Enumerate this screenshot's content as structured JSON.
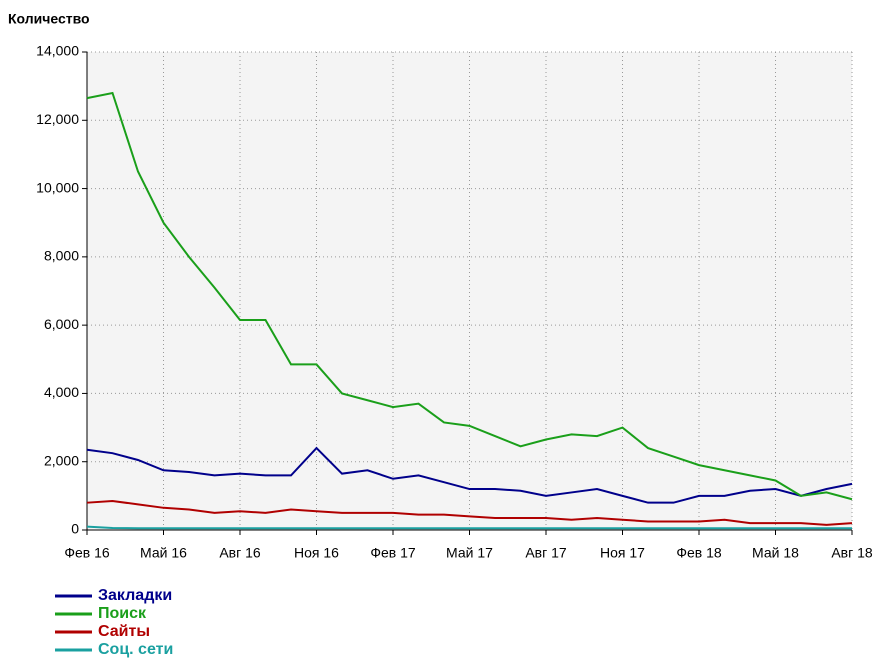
{
  "chart_data": {
    "type": "line",
    "ylabel": "Количество",
    "categories": [
      "Фев 16",
      null,
      null,
      "Май 16",
      null,
      null,
      "Авг 16",
      null,
      null,
      "Ноя 16",
      null,
      null,
      "Фев 17",
      null,
      null,
      "Май 17",
      null,
      null,
      "Авг 17",
      null,
      null,
      "Ноя 17",
      null,
      null,
      "Фев 18",
      null,
      null,
      "Май 18",
      null,
      null,
      "Авг 18"
    ],
    "series": [
      {
        "name": "Закладки",
        "color": "#00008b",
        "values": [
          2350,
          2250,
          2050,
          1750,
          1700,
          1600,
          1650,
          1600,
          1600,
          2400,
          1650,
          1750,
          1500,
          1600,
          1400,
          1200,
          1200,
          1150,
          1000,
          1100,
          1200,
          1000,
          800,
          800,
          1000,
          1000,
          1150,
          1200,
          1000,
          1200,
          1350
        ]
      },
      {
        "name": "Поиск",
        "color": "#1a9f1a",
        "values": [
          12650,
          12800,
          10500,
          9000,
          8000,
          7100,
          6150,
          6150,
          4850,
          4850,
          4000,
          3800,
          3600,
          3700,
          3150,
          3050,
          2750,
          2450,
          2650,
          2800,
          2750,
          3000,
          2400,
          2150,
          1900,
          1750,
          1600,
          1450,
          1000,
          1100,
          900
        ]
      },
      {
        "name": "Сайты",
        "color": "#b00000",
        "values": [
          800,
          850,
          750,
          650,
          600,
          500,
          550,
          500,
          600,
          550,
          500,
          500,
          500,
          450,
          450,
          400,
          350,
          350,
          350,
          300,
          350,
          300,
          250,
          250,
          250,
          300,
          200,
          200,
          200,
          150,
          200
        ]
      },
      {
        "name": "Соц. сети",
        "color": "#1aa0a0",
        "values": [
          100,
          60,
          50,
          50,
          50,
          50,
          50,
          50,
          50,
          50,
          50,
          50,
          50,
          50,
          50,
          50,
          50,
          50,
          50,
          50,
          50,
          50,
          50,
          50,
          50,
          50,
          50,
          50,
          50,
          50,
          50
        ]
      }
    ],
    "ylim": [
      0,
      14000
    ],
    "yticks": [
      0,
      {
        "value": 2000,
        "label": "2,000"
      },
      {
        "value": 4000,
        "label": "4,000"
      },
      {
        "value": 6000,
        "label": "6,000"
      },
      {
        "value": 8000,
        "label": "8,000"
      },
      {
        "value": 10000,
        "label": "10,000"
      },
      {
        "value": 12000,
        "label": "12,000"
      },
      {
        "value": 14000,
        "label": "14,000"
      }
    ],
    "grid": true
  }
}
